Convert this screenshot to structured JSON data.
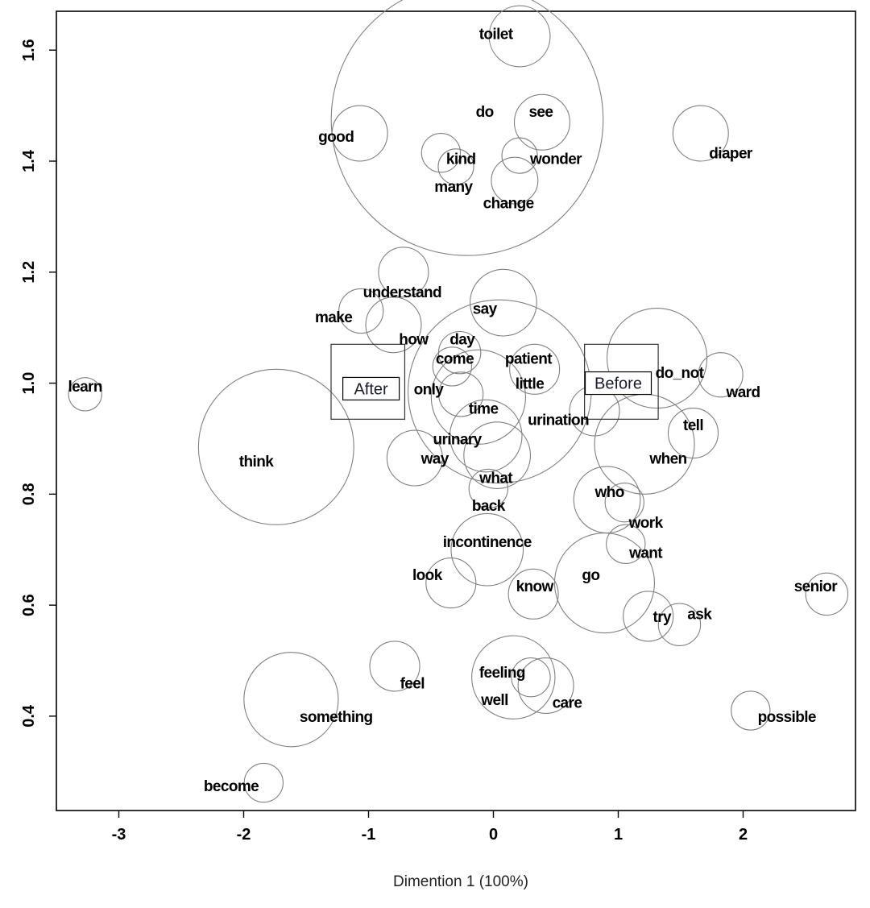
{
  "chart_data": {
    "type": "scatter",
    "title": "",
    "xlabel": "Dimention 1 (100%)",
    "ylabel": "",
    "xlim": [
      -3.5,
      2.9
    ],
    "ylim": [
      0.23,
      1.67
    ],
    "x_ticks": [
      -3,
      -2,
      -1,
      0,
      1,
      2
    ],
    "x_tick_labels": [
      "-3",
      "-2",
      "-1",
      "0",
      "1",
      "2"
    ],
    "y_ticks": [
      0.4,
      0.6,
      0.8,
      1.0,
      1.2,
      1.4,
      1.6
    ],
    "y_tick_labels": [
      "0.4",
      "0.6",
      "0.8",
      "1.0",
      "1.2",
      "1.4",
      "1.6"
    ],
    "grid": false,
    "bubbles": [
      {
        "x": 0.21,
        "y": 1.625,
        "r": 0.055
      },
      {
        "x": -0.21,
        "y": 1.475,
        "r": 0.245
      },
      {
        "x": 0.39,
        "y": 1.47,
        "r": 0.05
      },
      {
        "x": -1.07,
        "y": 1.45,
        "r": 0.05
      },
      {
        "x": 1.66,
        "y": 1.45,
        "r": 0.05
      },
      {
        "x": -0.42,
        "y": 1.415,
        "r": 0.035
      },
      {
        "x": 0.21,
        "y": 1.41,
        "r": 0.032
      },
      {
        "x": -0.3,
        "y": 1.39,
        "r": 0.032
      },
      {
        "x": 0.17,
        "y": 1.365,
        "r": 0.042
      },
      {
        "x": -0.72,
        "y": 1.2,
        "r": 0.045
      },
      {
        "x": 0.08,
        "y": 1.145,
        "r": 0.06
      },
      {
        "x": -1.06,
        "y": 1.13,
        "r": 0.04
      },
      {
        "x": -0.8,
        "y": 1.105,
        "r": 0.05
      },
      {
        "x": -0.27,
        "y": 1.055,
        "r": 0.038
      },
      {
        "x": -0.33,
        "y": 1.03,
        "r": 0.035
      },
      {
        "x": 0.05,
        "y": 0.985,
        "r": 0.165
      },
      {
        "x": 0.33,
        "y": 1.025,
        "r": 0.045
      },
      {
        "x": -0.12,
        "y": 0.975,
        "r": 0.085
      },
      {
        "x": -0.26,
        "y": 0.98,
        "r": 0.04
      },
      {
        "x": 1.31,
        "y": 1.045,
        "r": 0.09
      },
      {
        "x": 1.82,
        "y": 1.015,
        "r": 0.04
      },
      {
        "x": -3.27,
        "y": 0.98,
        "r": 0.03
      },
      {
        "x": 0.81,
        "y": 0.95,
        "r": 0.045
      },
      {
        "x": -0.06,
        "y": 0.905,
        "r": 0.065
      },
      {
        "x": 1.6,
        "y": 0.91,
        "r": 0.045
      },
      {
        "x": 1.21,
        "y": 0.89,
        "r": 0.09
      },
      {
        "x": -1.74,
        "y": 0.885,
        "r": 0.14
      },
      {
        "x": -0.63,
        "y": 0.865,
        "r": 0.05
      },
      {
        "x": 0.03,
        "y": 0.87,
        "r": 0.06
      },
      {
        "x": -0.04,
        "y": 0.81,
        "r": 0.035
      },
      {
        "x": 0.91,
        "y": 0.79,
        "r": 0.06
      },
      {
        "x": 1.05,
        "y": 0.785,
        "r": 0.035
      },
      {
        "x": -0.05,
        "y": 0.7,
        "r": 0.065
      },
      {
        "x": 1.06,
        "y": 0.71,
        "r": 0.035
      },
      {
        "x": -0.34,
        "y": 0.64,
        "r": 0.045
      },
      {
        "x": 0.32,
        "y": 0.62,
        "r": 0.045
      },
      {
        "x": 0.89,
        "y": 0.64,
        "r": 0.09
      },
      {
        "x": 2.67,
        "y": 0.62,
        "r": 0.038
      },
      {
        "x": 1.24,
        "y": 0.58,
        "r": 0.045
      },
      {
        "x": 1.49,
        "y": 0.565,
        "r": 0.038
      },
      {
        "x": -0.79,
        "y": 0.49,
        "r": 0.045
      },
      {
        "x": 0.16,
        "y": 0.47,
        "r": 0.075
      },
      {
        "x": 0.42,
        "y": 0.455,
        "r": 0.05
      },
      {
        "x": 0.3,
        "y": 0.47,
        "r": 0.035
      },
      {
        "x": -1.62,
        "y": 0.43,
        "r": 0.085
      },
      {
        "x": 2.06,
        "y": 0.41,
        "r": 0.035
      },
      {
        "x": -1.84,
        "y": 0.28,
        "r": 0.035
      }
    ],
    "labels": [
      {
        "text": "toilet",
        "x": 0.02,
        "y": 1.63
      },
      {
        "text": "do",
        "x": -0.07,
        "y": 1.49
      },
      {
        "text": "see",
        "x": 0.38,
        "y": 1.49
      },
      {
        "text": "good",
        "x": -1.26,
        "y": 1.445
      },
      {
        "text": "diaper",
        "x": 1.9,
        "y": 1.415
      },
      {
        "text": "kind",
        "x": -0.26,
        "y": 1.405
      },
      {
        "text": "wonder",
        "x": 0.5,
        "y": 1.405
      },
      {
        "text": "many",
        "x": -0.32,
        "y": 1.355
      },
      {
        "text": "change",
        "x": 0.12,
        "y": 1.325
      },
      {
        "text": "understand",
        "x": -0.73,
        "y": 1.165
      },
      {
        "text": "make",
        "x": -1.28,
        "y": 1.12
      },
      {
        "text": "say",
        "x": -0.07,
        "y": 1.135
      },
      {
        "text": "how",
        "x": -0.64,
        "y": 1.08
      },
      {
        "text": "day",
        "x": -0.25,
        "y": 1.08
      },
      {
        "text": "patient",
        "x": 0.28,
        "y": 1.045
      },
      {
        "text": "come",
        "x": -0.31,
        "y": 1.045
      },
      {
        "text": "little",
        "x": 0.29,
        "y": 1.0
      },
      {
        "text": "do_not",
        "x": 1.49,
        "y": 1.02
      },
      {
        "text": "learn",
        "x": -3.27,
        "y": 0.995
      },
      {
        "text": "only",
        "x": -0.52,
        "y": 0.99
      },
      {
        "text": "ward",
        "x": 2.0,
        "y": 0.985
      },
      {
        "text": "time",
        "x": -0.08,
        "y": 0.955
      },
      {
        "text": "urination",
        "x": 0.52,
        "y": 0.935
      },
      {
        "text": "tell",
        "x": 1.6,
        "y": 0.925
      },
      {
        "text": "urinary",
        "x": -0.29,
        "y": 0.9
      },
      {
        "text": "when",
        "x": 1.4,
        "y": 0.865
      },
      {
        "text": "think",
        "x": -1.9,
        "y": 0.86
      },
      {
        "text": "way",
        "x": -0.47,
        "y": 0.865
      },
      {
        "text": "what",
        "x": 0.02,
        "y": 0.83
      },
      {
        "text": "back",
        "x": -0.04,
        "y": 0.78
      },
      {
        "text": "who",
        "x": 0.93,
        "y": 0.805
      },
      {
        "text": "work",
        "x": 1.22,
        "y": 0.75
      },
      {
        "text": "incontinence",
        "x": -0.05,
        "y": 0.715
      },
      {
        "text": "want",
        "x": 1.22,
        "y": 0.695
      },
      {
        "text": "look",
        "x": -0.53,
        "y": 0.655
      },
      {
        "text": "go",
        "x": 0.78,
        "y": 0.655
      },
      {
        "text": "know",
        "x": 0.33,
        "y": 0.635
      },
      {
        "text": "senior",
        "x": 2.58,
        "y": 0.635
      },
      {
        "text": "try",
        "x": 1.35,
        "y": 0.58
      },
      {
        "text": "ask",
        "x": 1.65,
        "y": 0.585
      },
      {
        "text": "feeling",
        "x": 0.07,
        "y": 0.48
      },
      {
        "text": "feel",
        "x": -0.65,
        "y": 0.46
      },
      {
        "text": "well",
        "x": 0.01,
        "y": 0.43
      },
      {
        "text": "care",
        "x": 0.59,
        "y": 0.425
      },
      {
        "text": "something",
        "x": -1.26,
        "y": 0.4
      },
      {
        "text": "possible",
        "x": 2.35,
        "y": 0.4
      },
      {
        "text": "become",
        "x": -2.1,
        "y": 0.275
      }
    ],
    "groups": [
      {
        "label": "After",
        "x": -0.98,
        "y": 0.99,
        "box_x": [
          -1.3,
          -0.71
        ],
        "box_y": [
          0.935,
          1.07
        ]
      },
      {
        "label": "Before",
        "x": 1.0,
        "y": 1.0,
        "box_x": [
          0.73,
          1.32
        ],
        "box_y": [
          0.935,
          1.07
        ]
      }
    ]
  }
}
